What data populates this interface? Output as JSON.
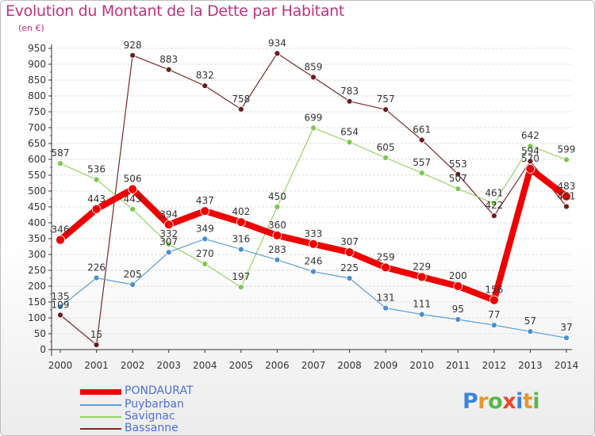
{
  "chart_data": {
    "type": "line",
    "title": "Evolution du Montant de la Dette par Habitant",
    "subtitle": "(en €)",
    "xlabel": "",
    "ylabel": "",
    "ylim": [
      0,
      950
    ],
    "ytick_step": 50,
    "categories": [
      "2000",
      "2001",
      "2002",
      "2003",
      "2004",
      "2005",
      "2006",
      "2007",
      "2008",
      "2009",
      "2010",
      "2011",
      "2012",
      "2013",
      "2014"
    ],
    "series": [
      {
        "name": "Bassanne",
        "color": "#7a2828",
        "values": [
          109,
          15,
          928,
          883,
          832,
          758,
          934,
          859,
          783,
          757,
          661,
          553,
          422,
          594,
          451
        ]
      },
      {
        "name": "Savignac",
        "color": "#96d464",
        "values": [
          587,
          536,
          443,
          332,
          270,
          197,
          450,
          699,
          654,
          605,
          557,
          507,
          461,
          642,
          599
        ]
      },
      {
        "name": "Puybarban",
        "color": "#5a9ed6",
        "values": [
          135,
          226,
          205,
          307,
          349,
          316,
          283,
          246,
          225,
          131,
          111,
          95,
          77,
          57,
          37
        ]
      },
      {
        "name": "PONDAURAT",
        "color": "#ee0000",
        "values": [
          346,
          443,
          506,
          394,
          437,
          402,
          360,
          333,
          307,
          259,
          229,
          200,
          156,
          570,
          483
        ]
      }
    ],
    "legend_order": [
      "PONDAURAT",
      "Puybarban",
      "Savignac",
      "Bassanne"
    ],
    "legend_position": "bottom-left",
    "grid": true
  },
  "logo": {
    "letters": [
      "P",
      "r",
      "o",
      "x",
      "i",
      "t",
      "i"
    ],
    "colors": [
      "#3a86d8",
      "#e8962a",
      "#58b848",
      "#e84a2a",
      "#3a86d8",
      "#e8962a",
      "#58b848"
    ]
  }
}
